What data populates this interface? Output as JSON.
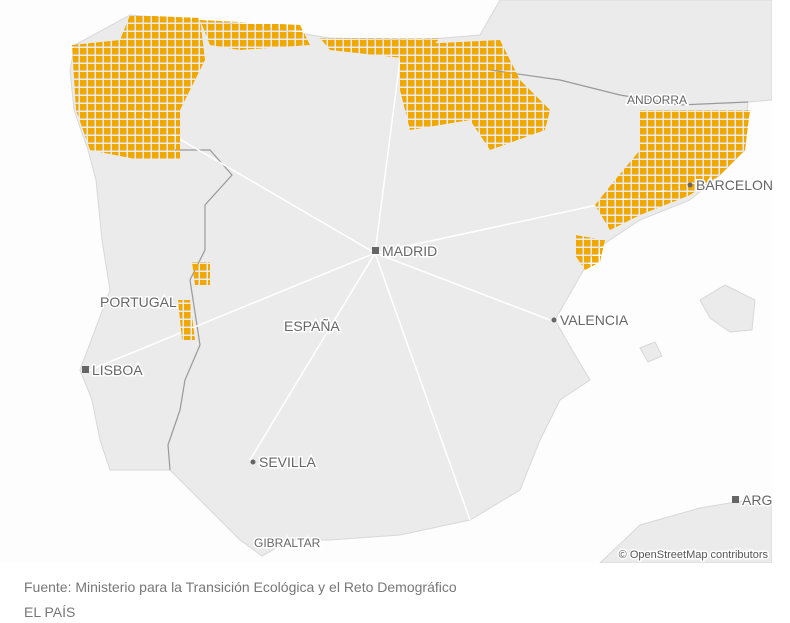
{
  "map": {
    "labels": [
      "ANDORRA",
      "BARCELON",
      "MADRID",
      "PORTUGAL",
      "ESPAÑA",
      "VALENCIA",
      "LISBOA",
      "SEVILLA",
      "ARG",
      "GIBRALTAR"
    ],
    "attribution": "© OpenStreetMap contributors"
  },
  "footer": {
    "source": "Fuente: Ministerio para la Transición Ecológica y el Reto Demográfico",
    "brand": "EL PAÍS"
  }
}
